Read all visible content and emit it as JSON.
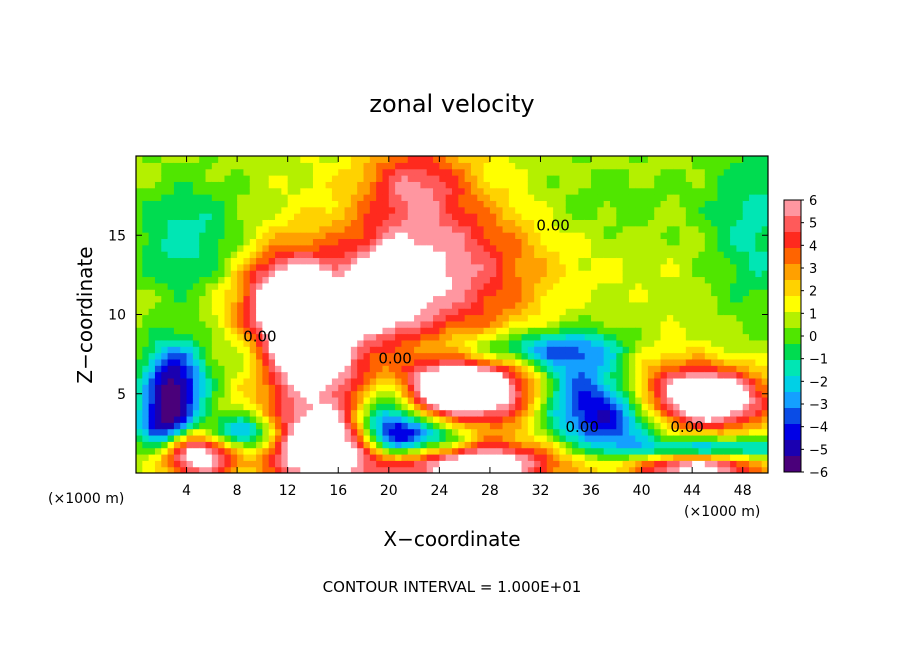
{
  "chart_data": {
    "type": "heatmap",
    "title": "zonal velocity",
    "xlabel": "X−coordinate",
    "ylabel": "Z−coordinate",
    "x_unit_label": "(×1000 m)",
    "z_unit_label": "(×1000 m)",
    "footnote": "CONTOUR INTERVAL = 1.000E+01",
    "xlim": [
      0,
      50
    ],
    "ylim": [
      0,
      20
    ],
    "x_ticks": [
      "4",
      "8",
      "12",
      "16",
      "20",
      "24",
      "28",
      "32",
      "36",
      "40",
      "44",
      "48"
    ],
    "y_ticks": [
      "5",
      "10",
      "15"
    ],
    "colorbar": {
      "range": [
        -6,
        6
      ],
      "tick_labels": [
        "6",
        "5",
        "4",
        "3",
        "2",
        "1",
        "0",
        "−1",
        "−2",
        "−3",
        "−4",
        "−5",
        "−6"
      ],
      "colors": [
        "#4a007a",
        "#1a00b0",
        "#0000e6",
        "#0a4ce6",
        "#14a0ff",
        "#00d0e6",
        "#00e6b4",
        "#00dc50",
        "#50e600",
        "#b4f000",
        "#ffff00",
        "#ffd200",
        "#ffa000",
        "#ff6400",
        "#ff2a1e",
        "#ff5a5a",
        "#ff96a0"
      ]
    },
    "contour_labels": [
      {
        "text": "0.00",
        "x": 33,
        "z": 15.3
      },
      {
        "text": "0.00",
        "x": 9.8,
        "z": 8.3
      },
      {
        "text": "0.00",
        "x": 20.5,
        "z": 6.9
      },
      {
        "text": "0.00",
        "x": 35.3,
        "z": 2.6
      },
      {
        "text": "0.00",
        "x": 43.6,
        "z": 2.6
      }
    ],
    "features": [
      {
        "x": 13.5,
        "z": 8.5,
        "v": 8,
        "rx": 4.5,
        "rz": 4.2
      },
      {
        "x": 14.5,
        "z": 1.6,
        "v": 8,
        "rx": 4.2,
        "rz": 2.4
      },
      {
        "x": 5,
        "z": 1.2,
        "v": 7,
        "rx": 3,
        "rz": 1.6
      },
      {
        "x": 26,
        "z": 5.2,
        "v": 8,
        "rx": 6.5,
        "rz": 2.4
      },
      {
        "x": 26,
        "z": 0.6,
        "v": 7.5,
        "rx": 8,
        "rz": 1.5
      },
      {
        "x": 45.5,
        "z": 4.7,
        "v": 8,
        "rx": 4.5,
        "rz": 1.9
      },
      {
        "x": 44.5,
        "z": 0.5,
        "v": 7,
        "rx": 5,
        "rz": 1.2
      },
      {
        "x": 24,
        "z": 13,
        "v": 4.8,
        "rx": 7.5,
        "rz": 5
      },
      {
        "x": 20,
        "z": 11.5,
        "v": 3.8,
        "rx": 3,
        "rz": 3
      },
      {
        "x": 11.5,
        "z": 11.5,
        "v": 3.5,
        "rx": 3.5,
        "rz": 2.8
      },
      {
        "x": 22,
        "z": 18.5,
        "v": 3.2,
        "rx": 4,
        "rz": 2.5
      },
      {
        "x": 4,
        "z": 14.5,
        "v": -2.5,
        "rx": 5,
        "rz": 4
      },
      {
        "x": 49,
        "z": 15,
        "v": -2.3,
        "rx": 4,
        "rz": 6
      },
      {
        "x": 36,
        "z": 17,
        "v": -1,
        "rx": 8,
        "rz": 3
      },
      {
        "x": 3,
        "z": 5.5,
        "v": -6.5,
        "rx": 2.5,
        "rz": 2.8
      },
      {
        "x": 9,
        "z": 7.5,
        "v": -2,
        "rx": 2.5,
        "rz": 2
      },
      {
        "x": 22.5,
        "z": 2.2,
        "v": -6,
        "rx": 4.5,
        "rz": 1.5
      },
      {
        "x": 35,
        "z": 5,
        "v": -5.5,
        "rx": 4,
        "rz": 3
      },
      {
        "x": 30,
        "z": 7.8,
        "v": -4,
        "rx": 8,
        "rz": 1.2
      },
      {
        "x": 20,
        "z": 4,
        "v": -5,
        "rx": 2.5,
        "rz": 2.5
      },
      {
        "x": 8.5,
        "z": 2.5,
        "v": -5,
        "rx": 3,
        "rz": 1.2
      },
      {
        "x": 45,
        "z": 1.5,
        "v": -6,
        "rx": 6,
        "rz": 0.8
      },
      {
        "x": 38,
        "z": 3,
        "v": -3,
        "rx": 3,
        "rz": 1.8
      },
      {
        "x": 2,
        "z": 3,
        "v": -4,
        "rx": 2,
        "rz": 1.5
      },
      {
        "x": 41,
        "z": 6.5,
        "v": 1.5,
        "rx": 4,
        "rz": 2
      },
      {
        "x": 36,
        "z": 10.5,
        "v": -0.4,
        "rx": 8,
        "rz": 2.5
      }
    ]
  }
}
